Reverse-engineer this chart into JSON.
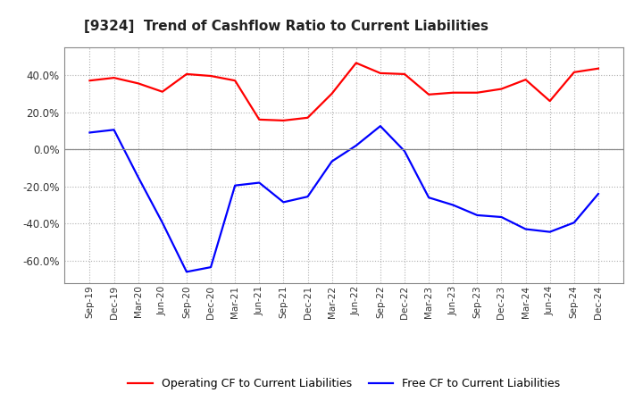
{
  "title": "[9324]  Trend of Cashflow Ratio to Current Liabilities",
  "x_labels": [
    "Sep-19",
    "Dec-19",
    "Mar-20",
    "Jun-20",
    "Sep-20",
    "Dec-20",
    "Mar-21",
    "Jun-21",
    "Sep-21",
    "Dec-21",
    "Mar-22",
    "Jun-22",
    "Sep-22",
    "Dec-22",
    "Mar-23",
    "Jun-23",
    "Sep-23",
    "Dec-23",
    "Mar-24",
    "Jun-24",
    "Sep-24",
    "Dec-24"
  ],
  "operating_cf": [
    0.37,
    0.385,
    0.355,
    0.31,
    0.405,
    0.395,
    0.37,
    0.16,
    0.155,
    0.17,
    0.3,
    0.465,
    0.41,
    0.405,
    0.295,
    0.305,
    0.305,
    0.325,
    0.375,
    0.26,
    0.415,
    0.435
  ],
  "free_cf": [
    0.09,
    0.105,
    -0.15,
    -0.395,
    -0.66,
    -0.635,
    -0.195,
    -0.18,
    -0.285,
    -0.255,
    -0.065,
    0.02,
    0.125,
    -0.01,
    -0.26,
    -0.3,
    -0.355,
    -0.365,
    -0.43,
    -0.445,
    -0.395,
    -0.24
  ],
  "operating_color": "#ff0000",
  "free_color": "#0000ff",
  "ylim": [
    -0.72,
    0.55
  ],
  "yticks": [
    -0.6,
    -0.4,
    -0.2,
    0.0,
    0.2,
    0.4
  ],
  "ytick_labels": [
    "-60.0%",
    "-40.0%",
    "-20.0%",
    "0.0%",
    "20.0%",
    "40.0%"
  ],
  "legend_op": "Operating CF to Current Liabilities",
  "legend_free": "Free CF to Current Liabilities",
  "background_color": "#ffffff",
  "grid_color": "#b0b0b0"
}
